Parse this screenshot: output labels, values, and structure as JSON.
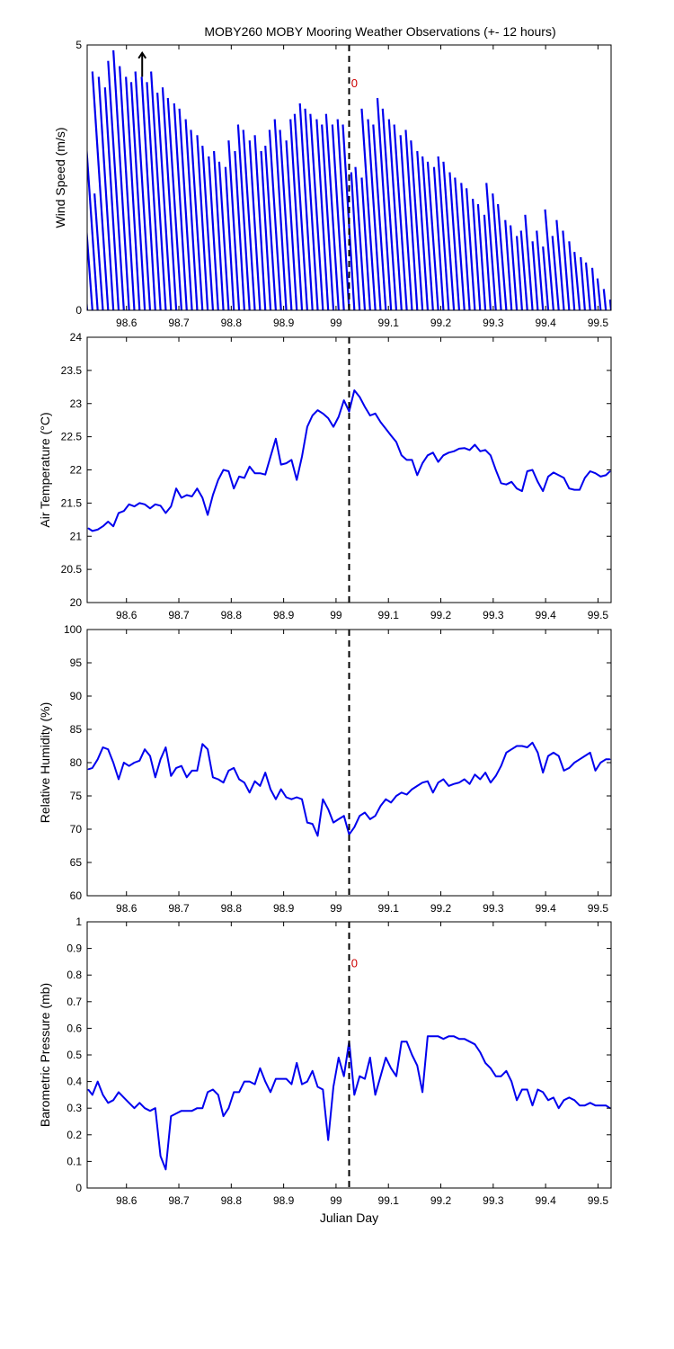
{
  "figure": {
    "title": "MOBY260 MOBY Mooring Weather Observations (+- 12 hours)",
    "colors": {
      "series": "#0000ee",
      "axes": "#000000",
      "annotation": "#cc0000",
      "marker": "#000000"
    }
  },
  "chart_data": [
    {
      "type": "vector",
      "title": "MOBY260 MOBY Mooring Weather Observations (+- 12 hours)",
      "xlabel": "",
      "ylabel": "Wind Speed (m/s)",
      "xlim": [
        98.525,
        99.525
      ],
      "ylim": [
        0,
        5
      ],
      "xticks": [
        "98.6",
        "98.7",
        "98.8",
        "98.9",
        "99",
        "99.1",
        "99.2",
        "99.3",
        "99.4",
        "99.5"
      ],
      "yticks": [
        "0",
        "5"
      ],
      "marker_x": 99.025,
      "annotation": "0",
      "annotation_pos": [
        99.035,
        4.2
      ],
      "arrow": {
        "x": 98.63,
        "y0": 4.4,
        "y1": 4.85
      },
      "x": [
        98.525,
        98.535,
        98.545,
        98.555,
        98.565,
        98.575,
        98.585,
        98.595,
        98.605,
        98.615,
        98.625,
        98.635,
        98.645,
        98.655,
        98.665,
        98.675,
        98.685,
        98.695,
        98.705,
        98.715,
        98.725,
        98.735,
        98.745,
        98.755,
        98.765,
        98.775,
        98.785,
        98.795,
        98.805,
        98.815,
        98.825,
        98.835,
        98.845,
        98.855,
        98.865,
        98.875,
        98.885,
        98.895,
        98.905,
        98.915,
        98.925,
        98.935,
        98.945,
        98.955,
        98.965,
        98.975,
        98.985,
        98.995,
        99.005,
        99.015,
        99.025,
        99.035,
        99.045,
        99.055,
        99.065,
        99.075,
        99.085,
        99.095,
        99.105,
        99.115,
        99.125,
        99.135,
        99.145,
        99.155,
        99.165,
        99.175,
        99.185,
        99.195,
        99.205,
        99.215,
        99.225,
        99.235,
        99.245,
        99.255,
        99.265,
        99.275,
        99.285,
        99.295,
        99.305,
        99.315,
        99.325,
        99.335,
        99.345,
        99.355,
        99.365,
        99.375,
        99.385,
        99.395,
        99.405,
        99.415,
        99.425,
        99.435,
        99.445,
        99.455,
        99.465,
        99.475,
        99.485,
        99.495,
        99.505,
        99.515,
        99.525
      ],
      "speed": [
        1.0,
        1.6,
        4.3,
        2.2,
        4.5,
        4.4,
        4.2,
        4.7,
        4.9,
        4.6,
        4.4,
        4.3,
        4.5,
        4.4,
        4.3,
        4.5,
        4.1,
        4.2,
        4.0,
        3.9,
        3.8,
        3.6,
        3.4,
        3.3,
        3.1,
        2.9,
        3.0,
        2.8,
        2.7,
        3.2,
        3.0,
        3.5,
        3.4,
        3.2,
        3.3,
        3.0,
        3.1,
        3.4,
        3.6,
        3.4,
        3.2,
        3.6,
        3.7,
        3.9,
        3.8,
        3.7,
        3.6,
        3.5,
        3.7,
        3.5,
        3.6,
        3.5,
        2.6,
        2.7,
        2.5,
        3.8,
        3.6,
        3.5,
        4.0,
        3.8,
        3.6,
        3.5,
        3.3,
        3.4,
        3.2,
        3.0,
        2.9,
        2.8,
        2.7,
        2.9,
        2.8,
        2.6,
        2.5,
        2.4,
        2.3,
        2.1,
        2.0,
        1.8,
        2.4,
        2.2,
        2.0,
        1.7,
        1.6,
        1.4,
        1.5,
        1.8,
        1.3,
        1.5,
        1.2,
        1.9,
        1.4,
        1.7,
        1.5,
        1.3,
        1.1,
        1.0,
        0.9,
        0.8,
        0.6,
        0.4,
        0.2
      ],
      "u": [
        -0.4,
        -0.6,
        -1.5,
        -0.8,
        -1.5,
        -1.4,
        -1.3,
        -1.5,
        -1.5,
        -1.4,
        -1.3,
        -1.3,
        -1.4,
        -1.3,
        -1.3,
        -1.4,
        -1.3,
        -1.3,
        -1.3,
        -1.2,
        -1.2,
        -1.1,
        -1.1,
        -1.0,
        -1.0,
        -0.9,
        -0.9,
        -0.9,
        -0.8,
        -1.0,
        -0.9,
        -1.1,
        -1.1,
        -1.0,
        -1.0,
        -0.9,
        -1.0,
        -1.1,
        -1.1,
        -1.1,
        -1.0,
        -1.1,
        -1.2,
        -1.2,
        -1.2,
        -1.2,
        -1.1,
        -1.1,
        -1.2,
        -1.1,
        -1.1,
        -1.1,
        -0.8,
        -0.9,
        -0.8,
        -1.3,
        -1.2,
        -1.2,
        -1.3,
        -1.3,
        -1.2,
        -1.2,
        -1.1,
        -1.1,
        -1.1,
        -1.0,
        -1.0,
        -1.0,
        -0.9,
        -1.0,
        -1.0,
        -0.9,
        -0.9,
        -0.8,
        -0.8,
        -0.7,
        -0.7,
        -0.6,
        -0.9,
        -0.8,
        -0.8,
        -0.6,
        -0.6,
        -0.5,
        -0.6,
        -0.7,
        -0.5,
        -0.6,
        -0.5,
        -0.8,
        -0.6,
        -0.7,
        -0.6,
        -0.5,
        -0.5,
        -0.4,
        -0.4,
        -0.3,
        -0.3,
        -0.2,
        -0.1
      ]
    },
    {
      "type": "line",
      "xlabel": "",
      "ylabel": "Air Temperature (°C)",
      "xlim": [
        98.525,
        99.525
      ],
      "ylim": [
        20,
        24
      ],
      "xticks": [
        "98.6",
        "98.7",
        "98.8",
        "98.9",
        "99",
        "99.1",
        "99.2",
        "99.3",
        "99.4",
        "99.5"
      ],
      "yticks": [
        "20",
        "20.5",
        "21",
        "21.5",
        "22",
        "22.5",
        "23",
        "23.5",
        "24"
      ],
      "marker_x": 99.025,
      "x": [
        98.527,
        98.535,
        98.545,
        98.555,
        98.565,
        98.575,
        98.585,
        98.595,
        98.605,
        98.615,
        98.625,
        98.635,
        98.645,
        98.655,
        98.665,
        98.675,
        98.685,
        98.695,
        98.705,
        98.715,
        98.725,
        98.735,
        98.745,
        98.755,
        98.765,
        98.775,
        98.785,
        98.795,
        98.805,
        98.815,
        98.825,
        98.835,
        98.845,
        98.855,
        98.865,
        98.875,
        98.885,
        98.895,
        98.905,
        98.915,
        98.925,
        98.935,
        98.945,
        98.955,
        98.965,
        98.975,
        98.985,
        98.995,
        99.005,
        99.015,
        99.025,
        99.035,
        99.045,
        99.055,
        99.065,
        99.075,
        99.085,
        99.095,
        99.105,
        99.115,
        99.125,
        99.135,
        99.145,
        99.155,
        99.165,
        99.175,
        99.185,
        99.195,
        99.205,
        99.215,
        99.225,
        99.235,
        99.245,
        99.255,
        99.265,
        99.275,
        99.285,
        99.295,
        99.305,
        99.315,
        99.325,
        99.335,
        99.345,
        99.355,
        99.365,
        99.375,
        99.385,
        99.395,
        99.405,
        99.415,
        99.425,
        99.435,
        99.445,
        99.455,
        99.465,
        99.475,
        99.485,
        99.495,
        99.505,
        99.515,
        99.523
      ],
      "y": [
        21.12,
        21.08,
        21.1,
        21.15,
        21.22,
        21.15,
        21.35,
        21.38,
        21.48,
        21.45,
        21.5,
        21.48,
        21.42,
        21.48,
        21.46,
        21.35,
        21.45,
        21.72,
        21.58,
        21.62,
        21.6,
        21.72,
        21.58,
        21.32,
        21.62,
        21.85,
        22.0,
        21.98,
        21.72,
        21.9,
        21.88,
        22.05,
        21.95,
        21.95,
        21.93,
        22.2,
        22.47,
        22.08,
        22.1,
        22.15,
        21.85,
        22.2,
        22.65,
        22.82,
        22.9,
        22.85,
        22.78,
        22.65,
        22.8,
        23.05,
        22.88,
        23.2,
        23.1,
        22.95,
        22.82,
        22.85,
        22.72,
        22.62,
        22.52,
        22.42,
        22.22,
        22.15,
        22.15,
        21.92,
        22.1,
        22.22,
        22.26,
        22.12,
        22.22,
        22.26,
        22.28,
        22.32,
        22.33,
        22.3,
        22.38,
        22.28,
        22.3,
        22.22,
        22.0,
        21.8,
        21.78,
        21.82,
        21.72,
        21.68,
        21.98,
        22.0,
        21.82,
        21.68,
        21.9,
        21.96,
        21.92,
        21.88,
        21.72,
        21.7,
        21.7,
        21.88,
        21.98,
        21.95,
        21.9,
        21.92,
        21.98
      ]
    },
    {
      "type": "line",
      "xlabel": "",
      "ylabel": "Relative Humidity (%)",
      "xlim": [
        98.525,
        99.525
      ],
      "ylim": [
        60,
        100
      ],
      "xticks": [
        "98.6",
        "98.7",
        "98.8",
        "98.9",
        "99",
        "99.1",
        "99.2",
        "99.3",
        "99.4",
        "99.5"
      ],
      "yticks": [
        "60",
        "65",
        "70",
        "75",
        "80",
        "85",
        "90",
        "95",
        "100"
      ],
      "marker_x": 99.025,
      "x": [
        98.527,
        98.535,
        98.545,
        98.555,
        98.565,
        98.575,
        98.585,
        98.595,
        98.605,
        98.615,
        98.625,
        98.635,
        98.645,
        98.655,
        98.665,
        98.675,
        98.685,
        98.695,
        98.705,
        98.715,
        98.725,
        98.735,
        98.745,
        98.755,
        98.765,
        98.775,
        98.785,
        98.795,
        98.805,
        98.815,
        98.825,
        98.835,
        98.845,
        98.855,
        98.865,
        98.875,
        98.885,
        98.895,
        98.905,
        98.915,
        98.925,
        98.935,
        98.945,
        98.955,
        98.965,
        98.975,
        98.985,
        98.995,
        99.005,
        99.015,
        99.025,
        99.035,
        99.045,
        99.055,
        99.065,
        99.075,
        99.085,
        99.095,
        99.105,
        99.115,
        99.125,
        99.135,
        99.145,
        99.155,
        99.165,
        99.175,
        99.185,
        99.195,
        99.205,
        99.215,
        99.225,
        99.235,
        99.245,
        99.255,
        99.265,
        99.275,
        99.285,
        99.295,
        99.305,
        99.315,
        99.325,
        99.335,
        99.345,
        99.355,
        99.365,
        99.375,
        99.385,
        99.395,
        99.405,
        99.415,
        99.425,
        99.435,
        99.445,
        99.455,
        99.465,
        99.475,
        99.485,
        99.495,
        99.505,
        99.515,
        99.523
      ],
      "y": [
        79.0,
        79.2,
        80.5,
        82.3,
        82.0,
        80.0,
        77.5,
        80.0,
        79.5,
        80.0,
        80.3,
        82.0,
        81.0,
        77.8,
        80.5,
        82.3,
        78.0,
        79.2,
        79.5,
        77.8,
        78.8,
        78.8,
        82.8,
        82.0,
        77.8,
        77.5,
        77.0,
        78.8,
        79.2,
        77.5,
        77.0,
        75.5,
        77.2,
        76.5,
        78.5,
        76.0,
        74.5,
        76.0,
        74.8,
        74.5,
        74.8,
        74.5,
        71.0,
        70.8,
        69.0,
        74.5,
        73.0,
        71.0,
        71.5,
        72.0,
        69.2,
        70.3,
        72.0,
        72.5,
        71.5,
        72.0,
        73.5,
        74.5,
        74.0,
        75.0,
        75.5,
        75.2,
        76.0,
        76.5,
        77.0,
        77.2,
        75.5,
        77.0,
        77.5,
        76.5,
        76.8,
        77.0,
        77.5,
        76.8,
        78.2,
        77.5,
        78.5,
        77.0,
        78.0,
        79.5,
        81.5,
        82.0,
        82.5,
        82.5,
        82.3,
        83.0,
        81.5,
        78.5,
        81.0,
        81.5,
        81.0,
        78.8,
        79.2,
        80.0,
        80.5,
        81.0,
        81.5,
        78.8,
        80.0,
        80.5,
        80.5
      ]
    },
    {
      "type": "line",
      "xlabel": "Julian Day",
      "ylabel": "Barometric Pressure (mb)",
      "xlim": [
        98.525,
        99.525
      ],
      "ylim": [
        0,
        1
      ],
      "xticks": [
        "98.6",
        "98.7",
        "98.8",
        "98.9",
        "99",
        "99.1",
        "99.2",
        "99.3",
        "99.4",
        "99.5"
      ],
      "yticks": [
        "0",
        "0.1",
        "0.2",
        "0.3",
        "0.4",
        "0.5",
        "0.6",
        "0.7",
        "0.8",
        "0.9",
        "1"
      ],
      "marker_x": 99.025,
      "annotation": "0",
      "annotation_pos": [
        99.035,
        0.83
      ],
      "x": [
        98.527,
        98.535,
        98.545,
        98.555,
        98.565,
        98.575,
        98.585,
        98.595,
        98.605,
        98.615,
        98.625,
        98.635,
        98.645,
        98.655,
        98.665,
        98.675,
        98.685,
        98.695,
        98.705,
        98.715,
        98.725,
        98.735,
        98.745,
        98.755,
        98.765,
        98.775,
        98.785,
        98.795,
        98.805,
        98.815,
        98.825,
        98.835,
        98.845,
        98.855,
        98.865,
        98.875,
        98.885,
        98.895,
        98.905,
        98.915,
        98.925,
        98.935,
        98.945,
        98.955,
        98.965,
        98.975,
        98.985,
        98.995,
        99.005,
        99.015,
        99.025,
        99.035,
        99.045,
        99.055,
        99.065,
        99.075,
        99.085,
        99.095,
        99.105,
        99.115,
        99.125,
        99.135,
        99.145,
        99.155,
        99.165,
        99.175,
        99.185,
        99.195,
        99.205,
        99.215,
        99.225,
        99.235,
        99.245,
        99.255,
        99.265,
        99.275,
        99.285,
        99.295,
        99.305,
        99.315,
        99.325,
        99.335,
        99.345,
        99.355,
        99.365,
        99.375,
        99.385,
        99.395,
        99.405,
        99.415,
        99.425,
        99.435,
        99.445,
        99.455,
        99.465,
        99.475,
        99.485,
        99.495,
        99.505,
        99.515,
        99.523
      ],
      "y": [
        0.37,
        0.35,
        0.4,
        0.35,
        0.32,
        0.33,
        0.36,
        0.34,
        0.32,
        0.3,
        0.32,
        0.3,
        0.29,
        0.3,
        0.12,
        0.07,
        0.27,
        0.28,
        0.29,
        0.29,
        0.29,
        0.3,
        0.3,
        0.36,
        0.37,
        0.35,
        0.27,
        0.3,
        0.36,
        0.36,
        0.4,
        0.4,
        0.39,
        0.45,
        0.4,
        0.36,
        0.41,
        0.41,
        0.41,
        0.39,
        0.47,
        0.39,
        0.4,
        0.44,
        0.38,
        0.37,
        0.18,
        0.38,
        0.49,
        0.42,
        0.55,
        0.35,
        0.42,
        0.41,
        0.49,
        0.35,
        0.42,
        0.49,
        0.45,
        0.42,
        0.55,
        0.55,
        0.5,
        0.46,
        0.36,
        0.57,
        0.57,
        0.57,
        0.56,
        0.57,
        0.57,
        0.56,
        0.56,
        0.55,
        0.54,
        0.51,
        0.47,
        0.45,
        0.42,
        0.42,
        0.44,
        0.4,
        0.33,
        0.37,
        0.37,
        0.31,
        0.37,
        0.36,
        0.33,
        0.34,
        0.3,
        0.33,
        0.34,
        0.33,
        0.31,
        0.31,
        0.32,
        0.31,
        0.31,
        0.31,
        0.3
      ]
    }
  ]
}
